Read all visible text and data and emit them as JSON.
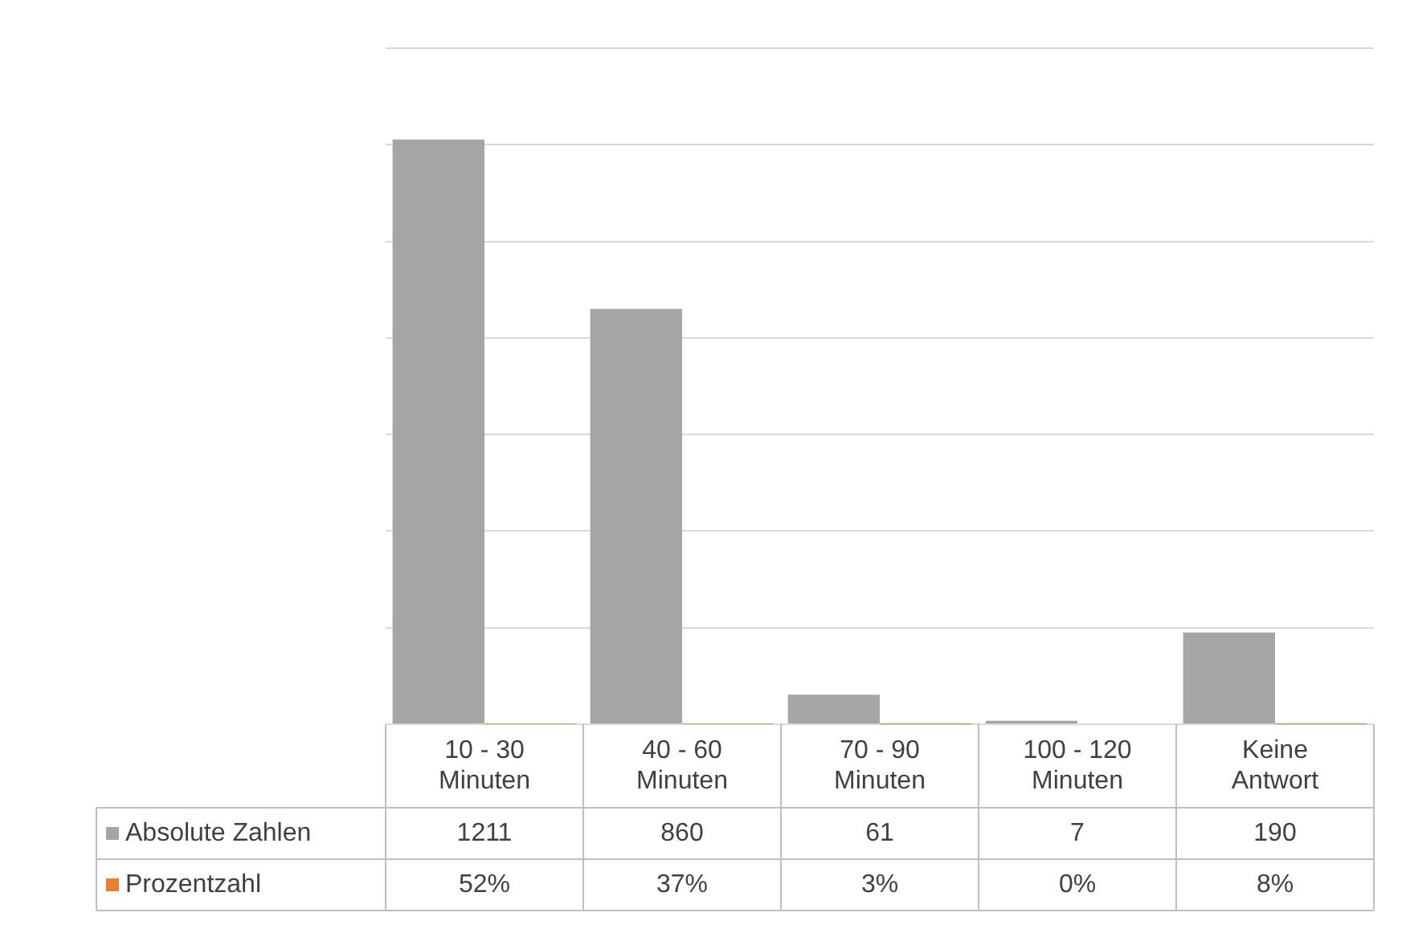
{
  "chart_data": {
    "type": "bar",
    "categories": [
      "10 - 30 Minuten",
      "40 - 60 Minuten",
      "70 - 90 Minuten",
      "100 - 120 Minuten",
      "Keine Antwort"
    ],
    "series": [
      {
        "name": "Absolute Zahlen",
        "color": "#a5a5a5",
        "values": [
          1211,
          860,
          61,
          7,
          190
        ],
        "value_labels": [
          "1211",
          "860",
          "61",
          "7",
          "190"
        ]
      },
      {
        "name": "Prozentzahl",
        "color": "#ed7d31",
        "values": [
          0.52,
          0.37,
          0.03,
          0,
          0.08
        ],
        "value_labels": [
          "52%",
          "37%",
          "3%",
          "0%",
          "8%"
        ]
      }
    ],
    "ylim": [
      0,
      1400
    ],
    "yticks": [
      {
        "value": 0,
        "label": null
      },
      {
        "value": 200,
        "label": null
      },
      {
        "value": 400,
        "label": null
      },
      {
        "value": 600,
        "label": null
      },
      {
        "value": 800,
        "label": null
      },
      {
        "value": 1000,
        "label": null
      },
      {
        "value": 1200,
        "label": null
      },
      {
        "value": 1400,
        "label": null
      }
    ],
    "grid": "y",
    "tick_labels": "x",
    "legend": "bottom",
    "data_labels": true
  }
}
